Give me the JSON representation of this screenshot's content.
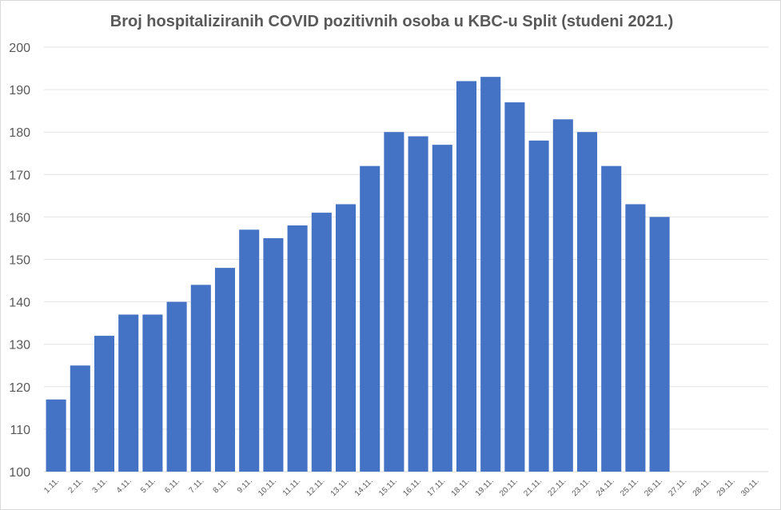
{
  "chart_data": {
    "type": "bar",
    "title": "Broj hospitaliziranih COVID pozitivnih osoba u KBC-u Split (studeni 2021.)",
    "xlabel": "",
    "ylabel": "",
    "ylim": [
      100,
      200
    ],
    "yticks": [
      100,
      110,
      120,
      130,
      140,
      150,
      160,
      170,
      180,
      190,
      200
    ],
    "grid": true,
    "bar_color": "#4472C4",
    "categories": [
      "1.11.",
      "2.11.",
      "3.11.",
      "4.11.",
      "5.11.",
      "6.11.",
      "7.11.",
      "8.11.",
      "9.11.",
      "10.11.",
      "11.11.",
      "12.11.",
      "13.11.",
      "14.11.",
      "15.11.",
      "16.11.",
      "17.11.",
      "18.11.",
      "19.11.",
      "20.11.",
      "21.11.",
      "22.11.",
      "23.11.",
      "24.11.",
      "25.11.",
      "26.11.",
      "27.11.",
      "28.11.",
      "29.11.",
      "30.11."
    ],
    "values": [
      117,
      125,
      132,
      137,
      137,
      140,
      144,
      148,
      157,
      155,
      158,
      161,
      163,
      172,
      180,
      179,
      177,
      192,
      193,
      187,
      178,
      183,
      180,
      172,
      163,
      160,
      null,
      null,
      null,
      null
    ]
  }
}
